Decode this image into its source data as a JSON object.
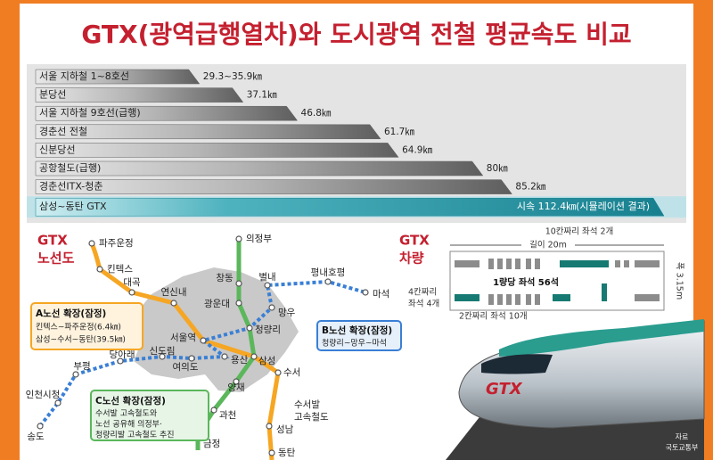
{
  "chart_data": {
    "type": "bar",
    "orientation": "horizontal",
    "title": "GTX(광역급행열차)와 도시광역 전철 평균속도 비교",
    "categories": [
      "서울 지하철 1~8호선",
      "분당선",
      "서울 지하철 9호선(급행)",
      "경춘선 전철",
      "신분당선",
      "공항철도(급행)",
      "경춘선ITX-청춘",
      "삼성~동탄 GTX"
    ],
    "values": [
      29.3,
      37.1,
      46.8,
      61.7,
      64.9,
      80,
      85.2,
      112.4
    ],
    "value_labels": [
      "29.3~35.9㎞",
      "37.1㎞",
      "46.8㎞",
      "61.7㎞",
      "64.9㎞",
      "80㎞",
      "85.2㎞",
      "시속 112.4㎞(시뮬레이션 결과)"
    ],
    "color": "#5e5e5e",
    "highlight_color": "#17808f"
  },
  "map": {
    "title": [
      "GTX",
      "노선도"
    ],
    "stations": [
      "의정부",
      "파주운정",
      "킨텍스",
      "대곡",
      "연신내",
      "창동",
      "별내",
      "평내호평",
      "마석",
      "광운대",
      "망우",
      "청량리",
      "서울역",
      "신도림",
      "당아래",
      "여의도",
      "용산",
      "삼성",
      "수서",
      "부평",
      "인천시청",
      "송도",
      "양재",
      "과천",
      "금정",
      "성남",
      "동탄"
    ],
    "hsr_label": [
      "수서발",
      "고속철도"
    ],
    "callouts": {
      "a": [
        "A노선 확장(잠정)",
        "킨텍스~파주운정(6.4㎞)",
        "삼성~수서~동탄(39.5㎞)"
      ],
      "b": [
        "B노선 확장(잠정)",
        "청량리~망우~마석"
      ],
      "c": [
        "C노선 확장(잠정)",
        "수서발 고속철도와",
        "노선 공유해 의정부·",
        "청량리발 고속철도 추진"
      ]
    }
  },
  "train": {
    "title": [
      "GTX",
      "차량"
    ],
    "length": "길이 20m",
    "seat10": "10칸짜리 좌석 2개",
    "per_car": "1량당 좌석 56석",
    "seat4": [
      "4칸짜리",
      "좌석 4개"
    ],
    "seat2": "2칸짜리 좌석 10개",
    "width": "폭 3.15m",
    "logo": "GTX"
  },
  "source": [
    "자료",
    "국토교통부"
  ]
}
